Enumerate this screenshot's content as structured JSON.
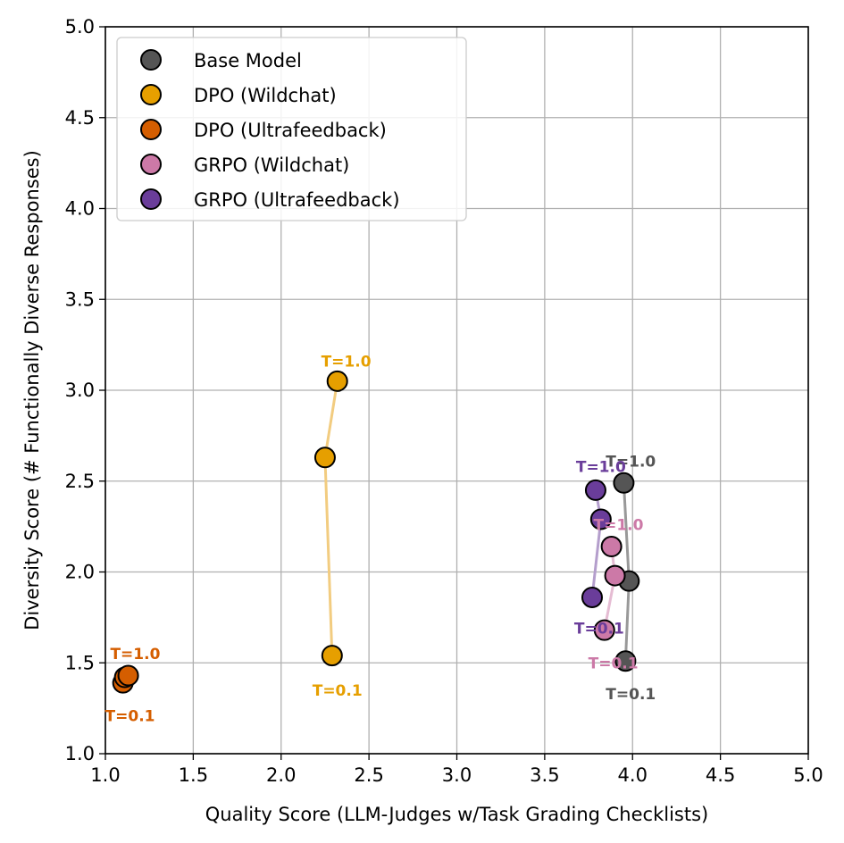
{
  "chart_data": {
    "type": "scatter",
    "title": "",
    "xlabel": "Quality Score (LLM-Judges w/Task Grading Checklists)",
    "ylabel": "Diversity Score (# Functionally Diverse Responses)",
    "xlim": [
      1.0,
      5.0
    ],
    "ylim": [
      1.0,
      5.0
    ],
    "xticks": [
      "1.0",
      "1.5",
      "2.0",
      "2.5",
      "3.0",
      "3.5",
      "4.0",
      "4.5",
      "5.0"
    ],
    "yticks": [
      "1.0",
      "1.5",
      "2.0",
      "2.5",
      "3.0",
      "3.5",
      "4.0",
      "4.5",
      "5.0"
    ],
    "grid": true,
    "legend_position": "top-left",
    "series": [
      {
        "name": "Base Model",
        "color": "#555555",
        "line_color": "#999999",
        "points": [
          {
            "x": 3.96,
            "y": 1.51
          },
          {
            "x": 3.98,
            "y": 1.95
          },
          {
            "x": 3.95,
            "y": 2.49
          }
        ],
        "annotations": [
          {
            "text": "T=0.1",
            "x": 3.99,
            "y": 1.33
          },
          {
            "text": "T=1.0",
            "x": 3.99,
            "y": 2.61
          }
        ]
      },
      {
        "name": "DPO (Wildchat)",
        "color": "#E69F00",
        "line_color": "#F2CC80",
        "points": [
          {
            "x": 2.29,
            "y": 1.54
          },
          {
            "x": 2.25,
            "y": 2.63
          },
          {
            "x": 2.32,
            "y": 3.05
          }
        ],
        "annotations": [
          {
            "text": "T=0.1",
            "x": 2.32,
            "y": 1.35
          },
          {
            "text": "T=1.0",
            "x": 2.37,
            "y": 3.16
          }
        ]
      },
      {
        "name": "DPO (Ultrafeedback)",
        "color": "#D55E00",
        "line_color": "#EAA877",
        "points": [
          {
            "x": 1.1,
            "y": 1.39
          },
          {
            "x": 1.11,
            "y": 1.42
          },
          {
            "x": 1.13,
            "y": 1.43
          }
        ],
        "annotations": [
          {
            "text": "T=0.1",
            "x": 1.14,
            "y": 1.21
          },
          {
            "text": "T=1.0",
            "x": 1.17,
            "y": 1.55
          }
        ]
      },
      {
        "name": "GRPO (Wildchat)",
        "color": "#CC79A7",
        "line_color": "#E5BCD3",
        "points": [
          {
            "x": 3.84,
            "y": 1.68
          },
          {
            "x": 3.9,
            "y": 1.98
          },
          {
            "x": 3.88,
            "y": 2.14
          }
        ],
        "annotations": [
          {
            "text": "T=0.1",
            "x": 3.89,
            "y": 1.5
          },
          {
            "text": "T=1.0",
            "x": 3.92,
            "y": 2.26
          }
        ]
      },
      {
        "name": "GRPO (Ultrafeedback)",
        "color": "#6A3D9A",
        "line_color": "#B49ECC",
        "points": [
          {
            "x": 3.77,
            "y": 1.86
          },
          {
            "x": 3.82,
            "y": 2.29
          },
          {
            "x": 3.79,
            "y": 2.45
          }
        ],
        "annotations": [
          {
            "text": "T=0.1",
            "x": 3.81,
            "y": 1.69
          },
          {
            "text": "T=1.0",
            "x": 3.82,
            "y": 2.58
          }
        ]
      }
    ]
  }
}
